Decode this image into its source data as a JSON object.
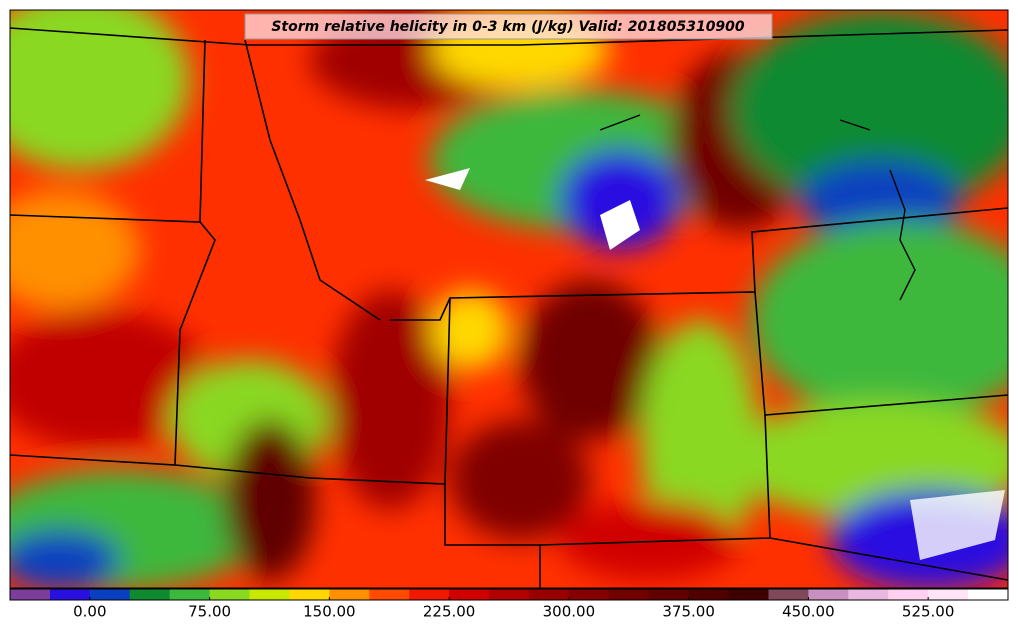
{
  "header": {
    "title": "Storm relative helicity in 0-3 km (J/kg) Valid: 201805310900"
  },
  "colorbar": {
    "clim": [
      -50,
      575
    ],
    "colors": [
      "#7b3f9b",
      "#2a10e0",
      "#0a40c0",
      "#108a30",
      "#3cb83c",
      "#8ad820",
      "#c8e800",
      "#ffd800",
      "#ff9000",
      "#ff4a00",
      "#f01800",
      "#d00000",
      "#b00000",
      "#980000",
      "#840000",
      "#700000",
      "#600000",
      "#500000",
      "#3e0000",
      "#804858",
      "#c890c0",
      "#e8b8e0",
      "#ffd0f0",
      "#ffe4f8",
      "#ffffff"
    ],
    "ticks": [
      {
        "value": 0,
        "label": "0.00"
      },
      {
        "value": 75,
        "label": "75.00"
      },
      {
        "value": 150,
        "label": "150.00"
      },
      {
        "value": 225,
        "label": "225.00"
      },
      {
        "value": 300,
        "label": "300.00"
      },
      {
        "value": 375,
        "label": "375.00"
      },
      {
        "value": 450,
        "label": "450.00"
      },
      {
        "value": 525,
        "label": "525.00"
      }
    ]
  }
}
